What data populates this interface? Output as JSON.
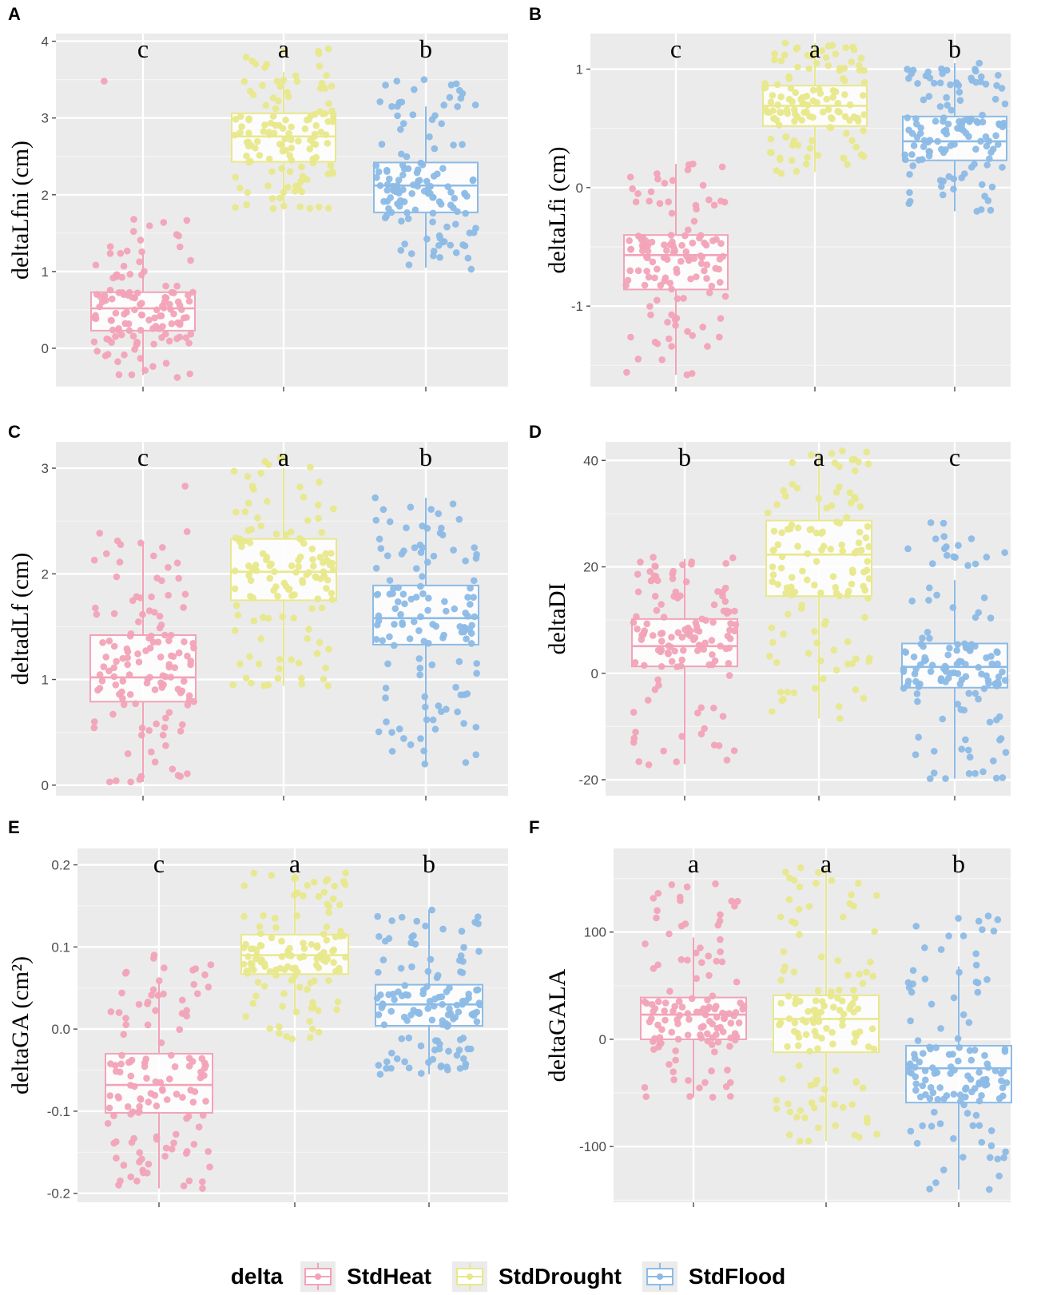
{
  "chart_data": [
    {
      "panel": "A",
      "type": "box",
      "ylabel": "deltaLfni (cm)",
      "yticks": [
        0,
        1,
        2,
        3,
        4
      ],
      "ylim": [
        -0.5,
        4.1
      ],
      "groups": [
        {
          "name": "StdHeat",
          "q1": 0.23,
          "median": 0.52,
          "q3": 0.73,
          "whisker_low": -0.35,
          "whisker_high": 1.25,
          "sig": "c",
          "n": 130,
          "pmin": -0.38,
          "pmax": 1.68,
          "outliers": [
            3.48
          ]
        },
        {
          "name": "StdDrought",
          "q1": 2.43,
          "median": 2.76,
          "q3": 3.06,
          "whisker_low": 1.82,
          "whisker_high": 3.6,
          "sig": "a",
          "n": 130,
          "pmin": 1.82,
          "pmax": 3.9,
          "outliers": []
        },
        {
          "name": "StdFlood",
          "q1": 1.77,
          "median": 2.12,
          "q3": 2.42,
          "whisker_low": 1.05,
          "whisker_high": 3.15,
          "sig": "b",
          "n": 130,
          "pmin": 1.03,
          "pmax": 3.5,
          "outliers": []
        }
      ]
    },
    {
      "panel": "B",
      "type": "box",
      "ylabel": "deltaLfi (cm)",
      "yticks": [
        -1,
        0,
        1
      ],
      "yticklabels": [
        "-1",
        "0",
        "1"
      ],
      "ylim": [
        -1.68,
        1.3
      ],
      "groups": [
        {
          "name": "StdHeat",
          "q1": -0.86,
          "median": -0.57,
          "q3": -0.4,
          "whisker_low": -1.58,
          "whisker_high": 0.2,
          "sig": "c",
          "n": 130,
          "pmin": -1.58,
          "pmax": 0.2,
          "outliers": []
        },
        {
          "name": "StdDrought",
          "q1": 0.52,
          "median": 0.69,
          "q3": 0.86,
          "whisker_low": 0.13,
          "whisker_high": 1.22,
          "sig": "a",
          "n": 130,
          "pmin": 0.12,
          "pmax": 1.22,
          "outliers": []
        },
        {
          "name": "StdFlood",
          "q1": 0.23,
          "median": 0.39,
          "q3": 0.6,
          "whisker_low": -0.2,
          "whisker_high": 1.05,
          "sig": "b",
          "n": 130,
          "pmin": -0.2,
          "pmax": 1.05,
          "outliers": []
        }
      ]
    },
    {
      "panel": "C",
      "type": "box",
      "ylabel": "deltadLf (cm)",
      "yticks": [
        0,
        1,
        2,
        3
      ],
      "ylim": [
        -0.1,
        3.25
      ],
      "groups": [
        {
          "name": "StdHeat",
          "q1": 0.79,
          "median": 1.02,
          "q3": 1.42,
          "whisker_low": 0.03,
          "whisker_high": 2.3,
          "sig": "c",
          "n": 130,
          "pmin": 0.03,
          "pmax": 2.4,
          "outliers": [
            2.83
          ]
        },
        {
          "name": "StdDrought",
          "q1": 1.75,
          "median": 2.02,
          "q3": 2.33,
          "whisker_low": 0.94,
          "whisker_high": 3.0,
          "sig": "a",
          "n": 130,
          "pmin": 0.94,
          "pmax": 3.1,
          "outliers": []
        },
        {
          "name": "StdFlood",
          "q1": 1.33,
          "median": 1.58,
          "q3": 1.89,
          "whisker_low": 0.2,
          "whisker_high": 2.72,
          "sig": "b",
          "n": 130,
          "pmin": 0.2,
          "pmax": 2.72,
          "outliers": []
        }
      ]
    },
    {
      "panel": "D",
      "type": "box",
      "ylabel": "deltaDI",
      "yticks": [
        -20,
        0,
        20,
        40
      ],
      "yticklabels": [
        "-20",
        "0",
        "20",
        "40"
      ],
      "ylim": [
        -23,
        43.5
      ],
      "groups": [
        {
          "name": "StdHeat",
          "q1": 1.3,
          "median": 5.1,
          "q3": 10.2,
          "whisker_low": -17,
          "whisker_high": 21.5,
          "sig": "b",
          "n": 130,
          "pmin": -17.2,
          "pmax": 21.8,
          "outliers": []
        },
        {
          "name": "StdDrought",
          "q1": 14.5,
          "median": 22.3,
          "q3": 28.7,
          "whisker_low": -8.5,
          "whisker_high": 41.5,
          "sig": "a",
          "n": 130,
          "pmin": -8.5,
          "pmax": 41.8,
          "outliers": []
        },
        {
          "name": "StdFlood",
          "q1": -2.7,
          "median": 1.2,
          "q3": 5.6,
          "whisker_low": -19.8,
          "whisker_high": 17.5,
          "sig": "c",
          "n": 130,
          "pmin": -19.8,
          "pmax": 28.3,
          "outliers": []
        }
      ]
    },
    {
      "panel": "E",
      "type": "box",
      "ylabel": "deltaGA (cm²)",
      "yticks": [
        -0.2,
        -0.1,
        0.0,
        0.1,
        0.2
      ],
      "yticklabels": [
        "-0.2",
        "-0.1",
        "0.0",
        "0.1",
        "0.2"
      ],
      "ylim": [
        -0.211,
        0.22
      ],
      "groups": [
        {
          "name": "StdHeat",
          "q1": -0.102,
          "median": -0.068,
          "q3": -0.03,
          "whisker_low": -0.194,
          "whisker_high": 0.057,
          "sig": "c",
          "n": 130,
          "pmin": -0.194,
          "pmax": 0.09,
          "outliers": []
        },
        {
          "name": "StdDrought",
          "q1": 0.067,
          "median": 0.09,
          "q3": 0.115,
          "whisker_low": 0.018,
          "whisker_high": 0.19,
          "sig": "a",
          "n": 130,
          "pmin": -0.012,
          "pmax": 0.19,
          "outliers": []
        },
        {
          "name": "StdFlood",
          "q1": 0.004,
          "median": 0.03,
          "q3": 0.054,
          "whisker_low": -0.055,
          "whisker_high": 0.145,
          "sig": "b",
          "n": 130,
          "pmin": -0.055,
          "pmax": 0.145,
          "outliers": []
        }
      ]
    },
    {
      "panel": "F",
      "type": "box",
      "ylabel": "deltaGALA",
      "yticks": [
        -100,
        0,
        100
      ],
      "yticklabels": [
        "-100",
        "0",
        "100"
      ],
      "ylim": [
        -152,
        178
      ],
      "groups": [
        {
          "name": "StdHeat",
          "q1": 0,
          "median": 23,
          "q3": 39,
          "whisker_low": -54,
          "whisker_high": 95,
          "sig": "a",
          "n": 130,
          "pmin": -54,
          "pmax": 145,
          "outliers": []
        },
        {
          "name": "StdDrought",
          "q1": -12,
          "median": 19,
          "q3": 41,
          "whisker_low": -95,
          "whisker_high": 160,
          "sig": "a",
          "n": 130,
          "pmin": -95,
          "pmax": 160,
          "outliers": []
        },
        {
          "name": "StdFlood",
          "q1": -59,
          "median": -27,
          "q3": -6,
          "whisker_low": -140,
          "whisker_high": 68,
          "sig": "b",
          "n": 130,
          "pmin": -140,
          "pmax": 115,
          "outliers": []
        }
      ]
    }
  ],
  "legend": {
    "title": "delta",
    "position": "bottom",
    "items": [
      {
        "label": "StdHeat",
        "color": "#f2a3b8",
        "fill": "#fde6ec"
      },
      {
        "label": "StdDrought",
        "color": "#e8e88c",
        "fill": "#fdfde4"
      },
      {
        "label": "StdFlood",
        "color": "#8cbbe6",
        "fill": "#e4eefb"
      }
    ]
  }
}
